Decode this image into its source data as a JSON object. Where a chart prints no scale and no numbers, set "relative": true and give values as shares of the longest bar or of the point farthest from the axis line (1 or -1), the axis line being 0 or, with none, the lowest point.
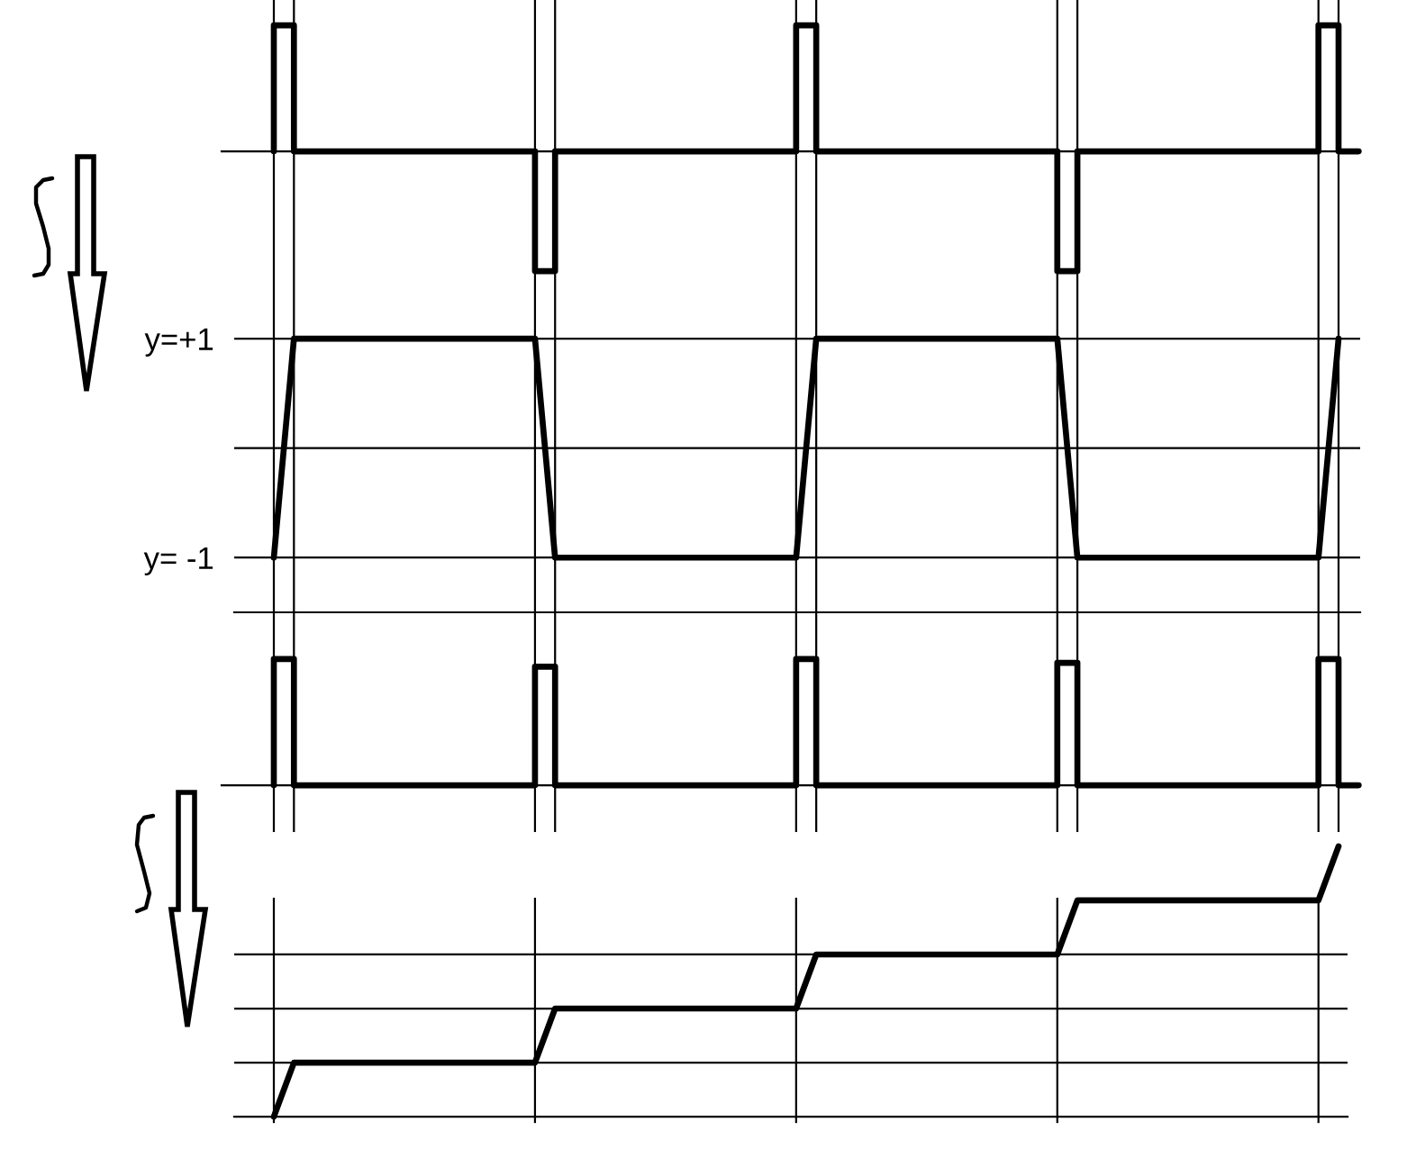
{
  "chart_data": [
    {
      "type": "step",
      "relative": true,
      "color": "#000000",
      "tick_labels": false,
      "grid": "x",
      "categories": [
        null,
        null,
        null,
        null,
        null,
        null,
        null,
        null,
        null,
        null,
        null,
        null,
        null,
        null,
        null,
        null,
        null,
        null,
        null,
        null,
        null,
        null,
        null,
        null,
        null,
        null,
        null,
        null,
        null,
        null,
        null,
        null,
        null,
        null,
        null,
        null,
        null,
        null,
        null,
        null,
        null,
        null,
        null,
        null,
        null,
        null,
        null,
        null,
        null,
        null,
        null,
        null,
        null,
        null,
        null
      ],
      "values": [
        0,
        1,
        0,
        0,
        0,
        0,
        0,
        0,
        0,
        0,
        0,
        0,
        0,
        0,
        -0.95,
        0,
        0,
        0,
        0,
        0,
        0,
        0,
        0,
        0,
        0,
        0,
        0,
        1,
        0,
        0,
        0,
        0,
        0,
        0,
        0,
        0,
        0,
        0,
        0,
        0,
        -0.95,
        0,
        0,
        0,
        0,
        0,
        0,
        0,
        0,
        0,
        0,
        0,
        0,
        1,
        0
      ]
    },
    {
      "type": "line",
      "color": "#000000",
      "tick_labels": "y",
      "grid": true,
      "categories": [
        null,
        null,
        null,
        null,
        null,
        null,
        null,
        null,
        null,
        null,
        null,
        null,
        null,
        null,
        null,
        null,
        null,
        null,
        null,
        null,
        null,
        null,
        null,
        null,
        null,
        null,
        null,
        null,
        null,
        null,
        null,
        null,
        null,
        null,
        null,
        null,
        null,
        null,
        null,
        null,
        null,
        null,
        null,
        null,
        null,
        null,
        null,
        null,
        null,
        null,
        null,
        null,
        null,
        null,
        null
      ],
      "values": [
        -1,
        1,
        1,
        1,
        1,
        1,
        1,
        1,
        1,
        1,
        1,
        1,
        1,
        1,
        -1,
        -1,
        -1,
        -1,
        -1,
        -1,
        -1,
        -1,
        -1,
        -1,
        -1,
        -1,
        -1,
        1,
        1,
        1,
        1,
        1,
        1,
        1,
        1,
        1,
        1,
        1,
        1,
        1,
        -1,
        -1,
        -1,
        -1,
        -1,
        -1,
        -1,
        -1,
        -1,
        -1,
        -1,
        -1,
        -1,
        1,
        null
      ],
      "ylim": [
        -1.5,
        1.33
      ],
      "yticks": [
        {
          "value": 1,
          "label": "y=+1"
        },
        {
          "value": 0,
          "label": null
        },
        {
          "value": -1,
          "label": "y= -1"
        }
      ]
    },
    {
      "type": "step",
      "relative": true,
      "color": "#000000",
      "tick_labels": false,
      "grid": "x",
      "categories": [
        null,
        null,
        null,
        null,
        null,
        null,
        null,
        null,
        null,
        null,
        null,
        null,
        null,
        null,
        null,
        null,
        null,
        null,
        null,
        null,
        null,
        null,
        null,
        null,
        null,
        null,
        null,
        null,
        null,
        null,
        null,
        null,
        null,
        null,
        null,
        null,
        null,
        null,
        null,
        null,
        null,
        null,
        null,
        null,
        null,
        null,
        null,
        null,
        null,
        null,
        null,
        null,
        null,
        null,
        null
      ],
      "values": [
        0,
        1,
        0,
        0,
        0,
        0,
        0,
        0,
        0,
        0,
        0,
        0,
        0,
        0,
        0.94,
        0,
        0,
        0,
        0,
        0,
        0,
        0,
        0,
        0,
        0,
        0,
        0,
        1,
        0,
        0,
        0,
        0,
        0,
        0,
        0,
        0,
        0,
        0,
        0,
        0,
        0.97,
        0,
        0,
        0,
        0,
        0,
        0,
        0,
        0,
        0,
        0,
        0,
        0,
        1,
        0
      ]
    },
    {
      "type": "line",
      "relative": true,
      "color": "#000000",
      "tick_labels": false,
      "grid": "x",
      "categories": [
        null,
        null,
        null,
        null,
        null,
        null,
        null,
        null,
        null,
        null,
        null,
        null,
        null,
        null,
        null,
        null,
        null,
        null,
        null,
        null,
        null,
        null,
        null,
        null,
        null,
        null,
        null,
        null,
        null,
        null,
        null,
        null,
        null,
        null,
        null,
        null,
        null,
        null,
        null,
        null,
        null,
        null,
        null,
        null,
        null,
        null,
        null,
        null,
        null,
        null,
        null,
        null,
        null,
        null,
        null
      ],
      "values": [
        0,
        0.2,
        0.2,
        0.2,
        0.2,
        0.2,
        0.2,
        0.2,
        0.2,
        0.2,
        0.2,
        0.2,
        0.2,
        0.2,
        0.4,
        0.4,
        0.4,
        0.4,
        0.4,
        0.4,
        0.4,
        0.4,
        0.4,
        0.4,
        0.4,
        0.4,
        0.4,
        0.6,
        0.6,
        0.6,
        0.6,
        0.6,
        0.6,
        0.6,
        0.6,
        0.6,
        0.6,
        0.6,
        0.6,
        0.6,
        0.8,
        0.8,
        0.8,
        0.8,
        0.8,
        0.8,
        0.8,
        0.8,
        0.8,
        0.8,
        0.8,
        0.8,
        0.8,
        1,
        null
      ],
      "ref_lines": [
        {
          "axis": "y",
          "value": 0.2,
          "color": "#000000"
        },
        {
          "axis": "y",
          "value": 0.4,
          "color": "#000000"
        },
        {
          "axis": "y",
          "value": 0.6,
          "color": "#000000"
        }
      ]
    }
  ]
}
